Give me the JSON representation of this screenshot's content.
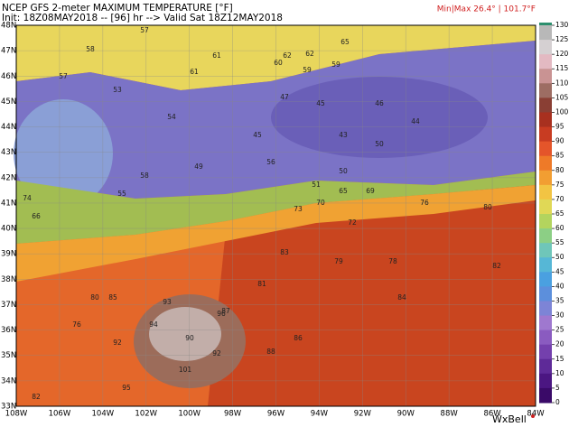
{
  "header": {
    "title": "NCEP GFS 2-meter MAXIMUM TEMPERATURE [°F]",
    "init": "Init: 18Z08MAY2018 -- [96] hr --> Valid Sat 18Z12MAY2018",
    "minmax": "Min|Max 26.4° | 101.7°F"
  },
  "colorbar": {
    "ticks": [
      130,
      125,
      120,
      115,
      110,
      105,
      100,
      95,
      90,
      85,
      80,
      75,
      70,
      65,
      60,
      55,
      50,
      45,
      40,
      35,
      30,
      25,
      20,
      15,
      10,
      5,
      0
    ]
  },
  "axes": {
    "lon_labels": [
      "108W",
      "106W",
      "104W",
      "102W",
      "100W",
      "98W",
      "96W",
      "94W",
      "92W",
      "90W",
      "88W",
      "86W",
      "84W"
    ],
    "lat_labels": [
      "48N",
      "47N",
      "46N",
      "45N",
      "44N",
      "43N",
      "42N",
      "41N",
      "40N",
      "39N",
      "38N",
      "37N",
      "36N",
      "35N",
      "34N",
      "33N"
    ]
  },
  "stations": [
    62,
    62,
    65,
    59,
    57,
    58,
    61,
    57,
    53,
    60,
    61,
    59,
    45,
    47,
    44,
    46,
    43,
    45,
    50,
    54,
    49,
    51,
    56,
    50,
    55,
    58,
    66,
    65,
    69,
    76,
    73,
    72,
    70,
    80,
    79,
    78,
    82,
    83,
    85,
    81,
    84,
    87,
    92,
    94,
    96,
    90,
    101,
    92,
    95,
    93,
    88,
    86,
    82,
    80,
    76,
    74
  ],
  "logo": "WxBell"
}
